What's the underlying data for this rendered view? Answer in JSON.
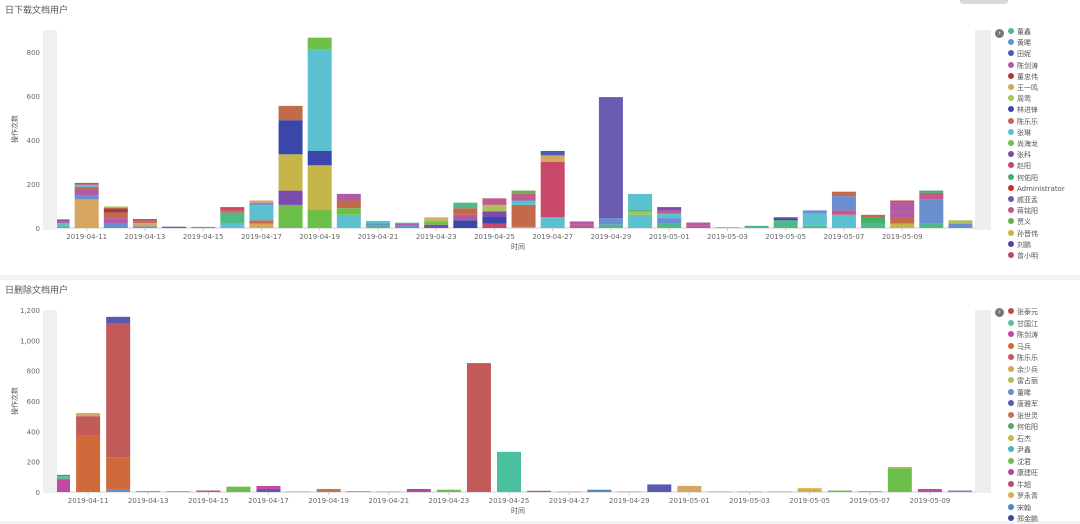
{
  "panels": [
    {
      "id": "p1",
      "title": "日下载文档用户",
      "ylabel": "操作次数",
      "xlabel": "时间",
      "yticks": [
        "0",
        "200",
        "400",
        "600",
        "800"
      ],
      "ymax": 900,
      "xticks": [
        "2019-04-11",
        "2019-04-13",
        "2019-04-15",
        "2019-04-17",
        "2019-04-19",
        "2019-04-21",
        "2019-04-23",
        "2019-04-25",
        "2019-04-27",
        "2019-04-29",
        "2019-05-01",
        "2019-05-03",
        "2019-05-05",
        "2019-05-07",
        "2019-05-09"
      ],
      "legend": [
        {
          "name": "董鑫",
          "color": "#4fb98a"
        },
        {
          "name": "黄晞",
          "color": "#6a8fd0"
        },
        {
          "name": "田妮",
          "color": "#4b5fb0"
        },
        {
          "name": "陈剑涛",
          "color": "#b25aa6"
        },
        {
          "name": "董忠伟",
          "color": "#a83a3a"
        },
        {
          "name": "王一鸣",
          "color": "#d6a560"
        },
        {
          "name": "周莺",
          "color": "#a9c35a"
        },
        {
          "name": "林进锋",
          "color": "#3b47a8"
        },
        {
          "name": "陈乐乐",
          "color": "#c26a4a"
        },
        {
          "name": "张琳",
          "color": "#5bc0d0"
        },
        {
          "name": "尚海龙",
          "color": "#6cc04a"
        },
        {
          "name": "张科",
          "color": "#7b4bb0"
        },
        {
          "name": "赵阳",
          "color": "#c9486a"
        },
        {
          "name": "何佑阳",
          "color": "#41b06a"
        },
        {
          "name": "Administrator",
          "color": "#c0302a"
        },
        {
          "name": "戚亚孟",
          "color": "#6a5ab0"
        },
        {
          "name": "蒋铭阳",
          "color": "#c25a8a"
        },
        {
          "name": "贾义",
          "color": "#6ab04a"
        },
        {
          "name": "孙晋伟",
          "color": "#c6b64a"
        },
        {
          "name": "刘鹏",
          "color": "#5a40a0"
        },
        {
          "name": "曾小明",
          "color": "#b84a6a"
        }
      ]
    },
    {
      "id": "p2",
      "title": "日删除文档用户",
      "ylabel": "操作次数",
      "xlabel": "时间",
      "yticks": [
        "0",
        "200",
        "400",
        "600",
        "800",
        "1,000",
        "1,200"
      ],
      "ymax": 1200,
      "xticks": [
        "2019-04-11",
        "2019-04-13",
        "2019-04-15",
        "2019-04-17",
        "2019-04-19",
        "2019-04-21",
        "2019-04-23",
        "2019-04-25",
        "2019-04-27",
        "2019-04-29",
        "2019-05-01",
        "2019-05-03",
        "2019-05-05",
        "2019-05-07",
        "2019-05-09"
      ],
      "legend": [
        {
          "name": "张泰元",
          "color": "#c04a4a"
        },
        {
          "name": "甘国江",
          "color": "#5ac0a0"
        },
        {
          "name": "陈剑涛",
          "color": "#c04aa0"
        },
        {
          "name": "马兵",
          "color": "#d06a3a"
        },
        {
          "name": "陈乐乐",
          "color": "#c25a5a"
        },
        {
          "name": "余少兵",
          "color": "#d6a560"
        },
        {
          "name": "雷占丽",
          "color": "#b8b85a"
        },
        {
          "name": "董晞",
          "color": "#6a8fd0"
        },
        {
          "name": "唐雅军",
          "color": "#5a5ab0"
        },
        {
          "name": "张世灵",
          "color": "#c07a4a"
        },
        {
          "name": "何佑阳",
          "color": "#4ab06a"
        },
        {
          "name": "石杰",
          "color": "#c6b64a"
        },
        {
          "name": "尹鑫",
          "color": "#4ab0b0"
        },
        {
          "name": "沈君",
          "color": "#6ac04a"
        },
        {
          "name": "康建旺",
          "color": "#b04aa0"
        },
        {
          "name": "牛超",
          "color": "#c04a6a"
        },
        {
          "name": "罗永青",
          "color": "#d6b040"
        },
        {
          "name": "宋翰",
          "color": "#4a8ac0"
        },
        {
          "name": "郑金鹏",
          "color": "#3a4aa0"
        }
      ]
    }
  ],
  "chart_data": [
    {
      "type": "bar",
      "stacked": true,
      "title": "日下载文档用户",
      "xlabel": "时间",
      "ylabel": "操作次数",
      "ylim": [
        0,
        900
      ],
      "legend_position": "right",
      "bars": [
        {
          "segs": [
            [
              8,
              "#4fb98a"
            ],
            [
              14,
              "#5bc0d0"
            ],
            [
              9,
              "#b25aa6"
            ],
            [
              8,
              "#6a5ab0"
            ]
          ]
        },
        {
          "segs": [
            [
              130,
              "#d6a560"
            ],
            [
              20,
              "#6a8fd0"
            ],
            [
              25,
              "#b25aa6"
            ],
            [
              12,
              "#c26a4a"
            ],
            [
              10,
              "#5bc0d0"
            ],
            [
              8,
              "#c9486a"
            ]
          ]
        },
        {
          "segs": [
            [
              20,
              "#6a8fd0"
            ],
            [
              25,
              "#b25aa6"
            ],
            [
              25,
              "#c26a4a"
            ],
            [
              20,
              "#a83a3a"
            ],
            [
              8,
              "#a9c35a"
            ]
          ]
        },
        {
          "segs": [
            [
              8,
              "#6a8fd0"
            ],
            [
              15,
              "#d6a560"
            ],
            [
              10,
              "#c26a4a"
            ],
            [
              8,
              "#c9486a"
            ]
          ]
        },
        {
          "segs": [
            [
              6,
              "#6a5ab0"
            ]
          ]
        },
        {
          "segs": [
            [
              5,
              "#6a8fd0"
            ]
          ]
        },
        {
          "segs": [
            [
              20,
              "#5bc0d0"
            ],
            [
              50,
              "#4fb98a"
            ],
            [
              10,
              "#c26a4a"
            ],
            [
              15,
              "#c9486a"
            ]
          ]
        },
        {
          "segs": [
            [
              20,
              "#d6a560"
            ],
            [
              15,
              "#c26a4a"
            ],
            [
              70,
              "#5bc0d0"
            ],
            [
              10,
              "#6a8fd0"
            ],
            [
              10,
              "#d6a560"
            ]
          ]
        },
        {
          "segs": [
            [
              105,
              "#6cc04a"
            ],
            [
              65,
              "#7b4bb0"
            ],
            [
              165,
              "#c6b64a"
            ],
            [
              155,
              "#3b47a8"
            ],
            [
              65,
              "#c26a4a"
            ]
          ]
        },
        {
          "segs": [
            [
              85,
              "#6cc04a"
            ],
            [
              200,
              "#c6b64a"
            ],
            [
              65,
              "#3b47a8"
            ],
            [
              460,
              "#5bc0d0"
            ],
            [
              55,
              "#6cc04a"
            ]
          ]
        },
        {
          "segs": [
            [
              60,
              "#5bc0d0"
            ],
            [
              30,
              "#6cc04a"
            ],
            [
              35,
              "#c26a4a"
            ],
            [
              30,
              "#b25aa6"
            ]
          ]
        },
        {
          "segs": [
            [
              10,
              "#4fb98a"
            ],
            [
              12,
              "#6a8fd0"
            ],
            [
              10,
              "#5bc0d0"
            ]
          ]
        },
        {
          "segs": [
            [
              10,
              "#6a8fd0"
            ],
            [
              8,
              "#b25aa6"
            ],
            [
              6,
              "#4fb98a"
            ]
          ]
        },
        {
          "segs": [
            [
              15,
              "#7b4bb0"
            ],
            [
              15,
              "#6cc04a"
            ],
            [
              10,
              "#a9c35a"
            ],
            [
              8,
              "#d6a560"
            ]
          ]
        },
        {
          "segs": [
            [
              35,
              "#3b47a8"
            ],
            [
              25,
              "#b25aa6"
            ],
            [
              30,
              "#c26a4a"
            ],
            [
              25,
              "#4fb98a"
            ]
          ]
        },
        {
          "segs": [
            [
              20,
              "#c9486a"
            ],
            [
              30,
              "#3b47a8"
            ],
            [
              25,
              "#7b4bb0"
            ],
            [
              30,
              "#a9c35a"
            ],
            [
              30,
              "#c25a8a"
            ]
          ]
        },
        {
          "segs": [
            [
              5,
              "#5bc0d0"
            ],
            [
              100,
              "#c26a4a"
            ],
            [
              20,
              "#5bc0d0"
            ],
            [
              30,
              "#c25a8a"
            ],
            [
              15,
              "#6ab04a"
            ]
          ]
        },
        {
          "segs": [
            [
              50,
              "#5bc0d0"
            ],
            [
              250,
              "#c9486a"
            ],
            [
              30,
              "#d6a560"
            ],
            [
              20,
              "#4b5fb0"
            ]
          ]
        },
        {
          "segs": [
            [
              15,
              "#c25a8a"
            ],
            [
              15,
              "#b25aa6"
            ]
          ]
        },
        {
          "segs": [
            [
              15,
              "#4fb98a"
            ],
            [
              30,
              "#6a8fd0"
            ],
            [
              550,
              "#6a5ab0"
            ]
          ]
        },
        {
          "segs": [
            [
              60,
              "#5bc0d0"
            ],
            [
              15,
              "#a9c35a"
            ],
            [
              10,
              "#4fb98a"
            ],
            [
              70,
              "#5bc0d0"
            ]
          ]
        },
        {
          "segs": [
            [
              20,
              "#4fb98a"
            ],
            [
              25,
              "#6a8fd0"
            ],
            [
              20,
              "#5bc0d0"
            ],
            [
              15,
              "#c25a8a"
            ],
            [
              15,
              "#7b4bb0"
            ]
          ]
        },
        {
          "segs": [
            [
              10,
              "#c25a8a"
            ],
            [
              15,
              "#b25aa6"
            ]
          ]
        },
        {
          "segs": [
            [
              3,
              "#6a8fd0"
            ]
          ]
        },
        {
          "segs": [
            [
              10,
              "#4fb98a"
            ]
          ]
        },
        {
          "segs": [
            [
              35,
              "#4fb98a"
            ],
            [
              10,
              "#3b47a8"
            ],
            [
              5,
              "#c26a4a"
            ]
          ]
        },
        {
          "segs": [
            [
              10,
              "#4fb98a"
            ],
            [
              55,
              "#5bc0d0"
            ],
            [
              15,
              "#6a8fd0"
            ]
          ]
        },
        {
          "segs": [
            [
              60,
              "#5bc0d0"
            ],
            [
              20,
              "#c25a8a"
            ],
            [
              65,
              "#6a8fd0"
            ],
            [
              20,
              "#c26a4a"
            ]
          ]
        },
        {
          "segs": [
            [
              20,
              "#4fb98a"
            ],
            [
              30,
              "#41b06a"
            ],
            [
              10,
              "#c26a4a"
            ]
          ]
        },
        {
          "segs": [
            [
              20,
              "#c6b64a"
            ],
            [
              30,
              "#c26a4a"
            ],
            [
              20,
              "#b25aa6"
            ],
            [
              45,
              "#b25aa6"
            ],
            [
              10,
              "#c9486a"
            ]
          ]
        },
        {
          "segs": [
            [
              20,
              "#4fb98a"
            ],
            [
              110,
              "#6a8fd0"
            ],
            [
              30,
              "#c25a8a"
            ],
            [
              10,
              "#41b06a"
            ]
          ]
        },
        {
          "segs": [
            [
              20,
              "#6a8fd0"
            ],
            [
              15,
              "#a9c35a"
            ]
          ]
        }
      ]
    },
    {
      "type": "bar",
      "stacked": true,
      "title": "日删除文档用户",
      "xlabel": "时间",
      "ylabel": "操作次数",
      "ylim": [
        0,
        1200
      ],
      "legend_position": "right",
      "bars": [
        {
          "segs": [
            [
              85,
              "#c04aa0"
            ],
            [
              20,
              "#5ac0a0"
            ],
            [
              8,
              "#c04aa0"
            ]
          ]
        },
        {
          "segs": [
            [
              370,
              "#d06a3a"
            ],
            [
              130,
              "#c25a5a"
            ],
            [
              20,
              "#d6a560"
            ]
          ]
        },
        {
          "segs": [
            [
              20,
              "#6a8fd0"
            ],
            [
              210,
              "#d06a3a"
            ],
            [
              880,
              "#c25a5a"
            ],
            [
              45,
              "#5a5ab0"
            ]
          ]
        },
        {
          "segs": [
            [
              5,
              "#c25a5a"
            ]
          ]
        },
        {
          "segs": [
            [
              5,
              "#6a8fd0"
            ]
          ]
        },
        {
          "segs": [
            [
              10,
              "#c25a5a"
            ]
          ]
        },
        {
          "segs": [
            [
              35,
              "#6ac04a"
            ]
          ]
        },
        {
          "segs": [
            [
              20,
              "#5a5ab0"
            ],
            [
              20,
              "#c04aa0"
            ]
          ]
        },
        {
          "segs": [
            [
              3,
              "#6a8fd0"
            ]
          ]
        },
        {
          "segs": [
            [
              20,
              "#c07a4a"
            ]
          ]
        },
        {
          "segs": [
            [
              5,
              "#6a8fd0"
            ]
          ]
        },
        {
          "segs": [
            [
              3,
              "#6a8fd0"
            ]
          ]
        },
        {
          "segs": [
            [
              20,
              "#b04aa0"
            ]
          ]
        },
        {
          "segs": [
            [
              15,
              "#6ac04a"
            ]
          ]
        },
        {
          "segs": [
            [
              850,
              "#c25a5a"
            ]
          ]
        },
        {
          "segs": [
            [
              265,
              "#4ac0a0"
            ]
          ]
        },
        {
          "segs": [
            [
              8,
              "#c04aa0"
            ]
          ]
        },
        {
          "segs": [
            [
              3,
              "#6a8fd0"
            ]
          ]
        },
        {
          "segs": [
            [
              15,
              "#4a8ac0"
            ]
          ]
        },
        {
          "segs": [
            [
              3,
              "#6a8fd0"
            ]
          ]
        },
        {
          "segs": [
            [
              50,
              "#5a5ab0"
            ]
          ]
        },
        {
          "segs": [
            [
              40,
              "#d6a560"
            ]
          ]
        },
        {
          "segs": [
            [
              3,
              "#6a8fd0"
            ]
          ]
        },
        {
          "segs": [
            [
              3,
              "#6a8fd0"
            ]
          ]
        },
        {
          "segs": [
            [
              3,
              "#6a8fd0"
            ]
          ]
        },
        {
          "segs": [
            [
              25,
              "#d6b040"
            ]
          ]
        },
        {
          "segs": [
            [
              10,
              "#6ac04a"
            ]
          ]
        },
        {
          "segs": [
            [
              5,
              "#6a8fd0"
            ]
          ]
        },
        {
          "segs": [
            [
              155,
              "#6ac04a"
            ],
            [
              10,
              "#c6b64a"
            ]
          ]
        },
        {
          "segs": [
            [
              20,
              "#c04aa0"
            ]
          ]
        },
        {
          "segs": [
            [
              10,
              "#6a8fd0"
            ]
          ]
        }
      ]
    }
  ]
}
